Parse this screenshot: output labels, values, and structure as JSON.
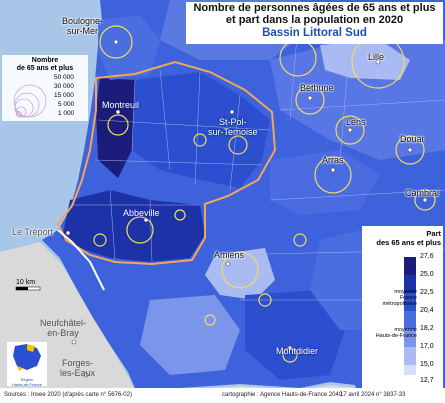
{
  "title": {
    "line1": "Nombre de personnes âgées de 65 ans et plus",
    "line2": "et part dans la population en 2020",
    "subtitle": "Bassin Littoral Sud"
  },
  "towns": {
    "boulogne_1": "Boulogne-",
    "boulogne_2": "sur-Mer",
    "lille": "Lille",
    "bethune": "Béthune",
    "lens": "Lens",
    "douai": "Douai",
    "arras": "Arras",
    "cambrai": "Cambrai",
    "montreuil": "Montreuil",
    "stpol_1": "St-Pol-",
    "stpol_2": "sur-Ternoise",
    "abbeville": "Abbeville",
    "le_treport": "Le Tréport",
    "amiens": "Amiens",
    "neufchatel_1": "Neufchâtel-",
    "neufchatel_2": "en-Bray",
    "forges_1": "Forges-",
    "forges_2": "les-Eaux",
    "montdidier": "Montdidier"
  },
  "size_legend": {
    "title_1": "Nombre",
    "title_2": "de 65 ans et plus",
    "values": [
      "50 000",
      "30 000",
      "15 000",
      "5 000",
      "1 000"
    ]
  },
  "share_legend": {
    "title_1": "Part",
    "title_2": "des 65 ans et plus",
    "ticks": [
      "27,6",
      "25,0",
      "22,5",
      "20,4",
      "18,2",
      "17,0",
      "15,0",
      "12,7"
    ],
    "colors": [
      "#1c1c7a",
      "#1e32a8",
      "#2c4fd0",
      "#4a6ee0",
      "#7b95ea",
      "#a9bbf2",
      "#d6def8"
    ],
    "ref_france_1": "moyenne",
    "ref_france_2": "France",
    "ref_france_3": "métropolitaine",
    "ref_hdf_1": "moyenne",
    "ref_hdf_2": "Hauts-de-France"
  },
  "scale": {
    "label": "10 km"
  },
  "logo": {
    "text_1": "Région",
    "text_2": "Hauts-de-France"
  },
  "footer": {
    "sources": "Sources : Insee 2020 (d'après carte n° 5676-02)",
    "cartography": "cartographie : Agence Hauts-de-France 2040",
    "date": "17 avril 2024 n° 3837-33"
  },
  "colors": {
    "sea": "#a8c7e8",
    "outside_region": "#d9d9d9",
    "basin_outline": "#f2a65a",
    "circle_stroke": "#f1dd5c"
  }
}
